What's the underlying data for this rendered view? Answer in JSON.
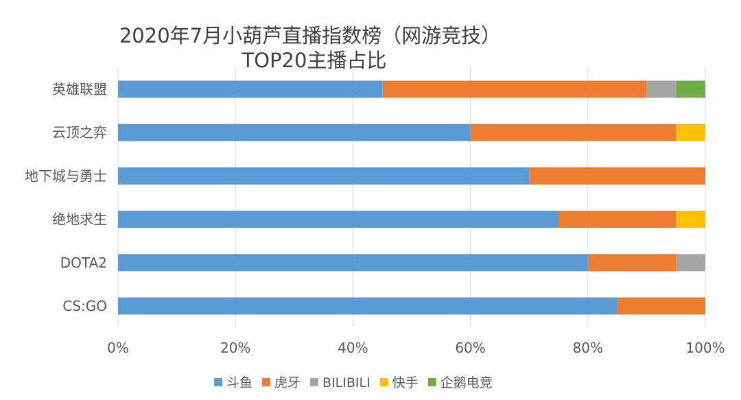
{
  "chart_data": {
    "type": "bar",
    "orientation": "horizontal",
    "stacked": "percent",
    "title": [
      "2020年7月小葫芦直播指数榜（网游竞技）",
      "TOP20主播占比"
    ],
    "categories": [
      "英雄联盟",
      "云顶之弈",
      "地下城与勇士",
      "绝地求生",
      "DOTA2",
      "CS:GO"
    ],
    "series": [
      {
        "name": "斗鱼",
        "color": "#5B9BD5",
        "values": [
          45,
          60,
          70,
          75,
          80,
          85
        ]
      },
      {
        "name": "虎牙",
        "color": "#ED7D31",
        "values": [
          45,
          35,
          30,
          20,
          15,
          15
        ]
      },
      {
        "name": "BILIBILI",
        "color": "#A5A5A5",
        "values": [
          5,
          0,
          0,
          0,
          5,
          0
        ]
      },
      {
        "name": "快手",
        "color": "#FFC000",
        "values": [
          0,
          5,
          0,
          5,
          0,
          0
        ]
      },
      {
        "name": "企鹅电竞",
        "color": "#70AD47",
        "values": [
          5,
          0,
          0,
          0,
          0,
          0
        ]
      }
    ],
    "xlim": [
      0,
      100
    ],
    "xticks": [
      "0%",
      "20%",
      "40%",
      "60%",
      "80%",
      "100%"
    ],
    "xlabel": "",
    "ylabel": "",
    "grid": true,
    "legend": "bottom"
  }
}
